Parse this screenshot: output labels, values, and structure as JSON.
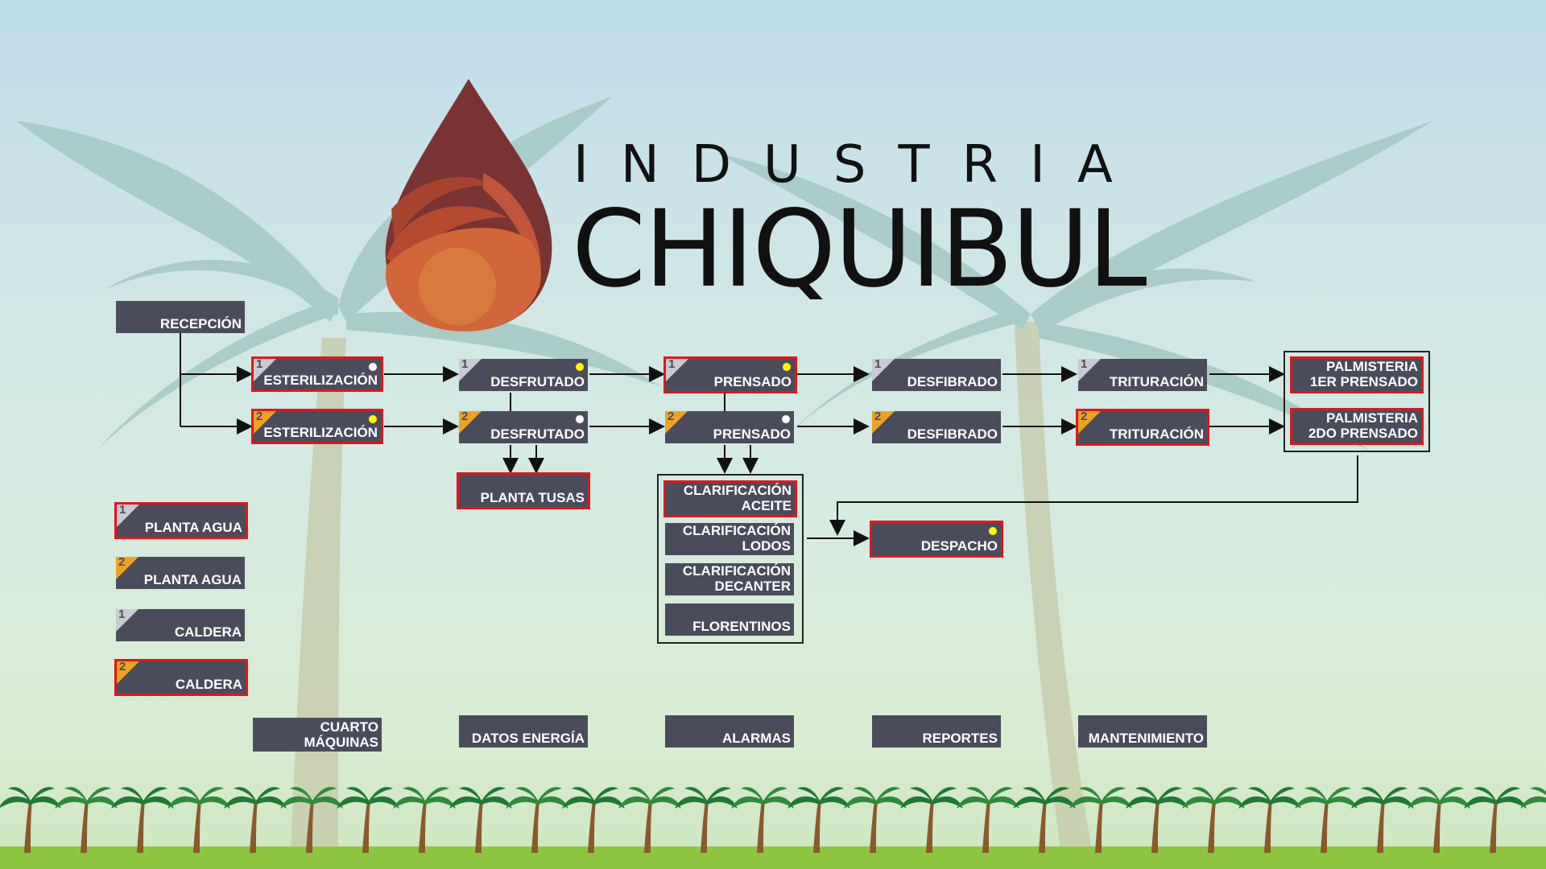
{
  "brand": {
    "line1": "INDUSTRIA",
    "line2": "CHIQUIBUL",
    "colors": {
      "drop_top": "#7a3333",
      "drop_mid": "#a8432e",
      "drop_bottom": "#d2663a"
    }
  },
  "colors": {
    "tile": "#4a4c5c",
    "alert_border": "#e0161c",
    "line1_badge": "#c9cad2",
    "line2_badge": "#f0a21e",
    "status_yellow": "#fff700",
    "status_white": "#ffffff",
    "palm": "#9ec4bf"
  },
  "nav": {
    "recepcion": "RECEPCIÓN",
    "esterilizacion_1": "ESTERILIZACIÓN",
    "esterilizacion_2": "ESTERILIZACIÓN",
    "desfrutado_1": "DESFRUTADO",
    "desfrutado_2": "DESFRUTADO",
    "planta_tusas": "PLANTA TUSAS",
    "prensado_1": "PRENSADO",
    "prensado_2": "PRENSADO",
    "clarificacion_aceite": "CLARIFICACIÓN\nACEITE",
    "clarificacion_lodos": "CLARIFICACIÓN\nLODOS",
    "clarificacion_decanter": "CLARIFICACIÓN\nDECANTER",
    "florentinos": "FLORENTINOS",
    "desfibrado_1": "DESFIBRADO",
    "desfibrado_2": "DESFIBRADO",
    "despacho": "DESPACHO",
    "trituracion_1": "TRITURACIÓN",
    "trituracion_2": "TRITURACIÓN",
    "palmisteria_1": "PALMISTERIA\n1ER PRENSADO",
    "palmisteria_2": "PALMISTERIA\n2DO PRENSADO",
    "planta_agua_1": "PLANTA AGUA",
    "planta_agua_2": "PLANTA AGUA",
    "caldera_1": "CALDERA",
    "caldera_2": "CALDERA",
    "cuarto_maquinas": "CUARTO\nMÁQUINAS",
    "datos_energia": "DATOS ENERGÍA",
    "alarmas": "ALARMAS",
    "reportes": "REPORTES",
    "mantenimiento": "MANTENIMIENTO"
  },
  "line_numbers": {
    "one": "1",
    "two": "2"
  }
}
